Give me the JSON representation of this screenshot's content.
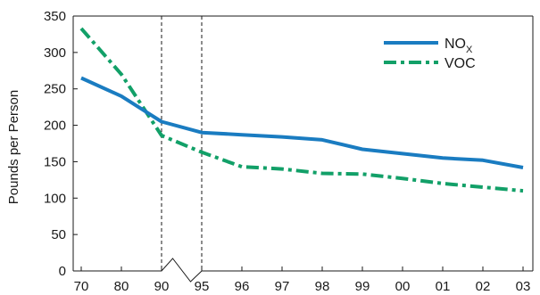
{
  "chart_data": {
    "type": "line",
    "title": "",
    "xlabel": "",
    "ylabel": "Pounds per Person",
    "categories": [
      "70",
      "80",
      "90",
      "95",
      "96",
      "97",
      "98",
      "99",
      "00",
      "01",
      "02",
      "03"
    ],
    "ylim": [
      0,
      350
    ],
    "yticks": [
      0,
      50,
      100,
      150,
      200,
      250,
      300,
      350
    ],
    "grid": false,
    "legend_position": "top-right",
    "axis_break_between": [
      "90",
      "95"
    ],
    "dashed_vertical_markers_at": [
      "90",
      "95"
    ],
    "series": [
      {
        "name": "NOx",
        "label_main": "NO",
        "label_sub": "X",
        "color": "#1a7cc1",
        "style": "solid",
        "values": [
          265,
          240,
          205,
          190,
          187,
          184,
          180,
          167,
          161,
          155,
          152,
          142
        ]
      },
      {
        "name": "VOC",
        "label_main": "VOC",
        "label_sub": "",
        "color": "#12a068",
        "style": "dash-dot",
        "values": [
          333,
          270,
          186,
          163,
          143,
          140,
          134,
          133,
          127,
          120,
          115,
          110
        ]
      }
    ]
  }
}
